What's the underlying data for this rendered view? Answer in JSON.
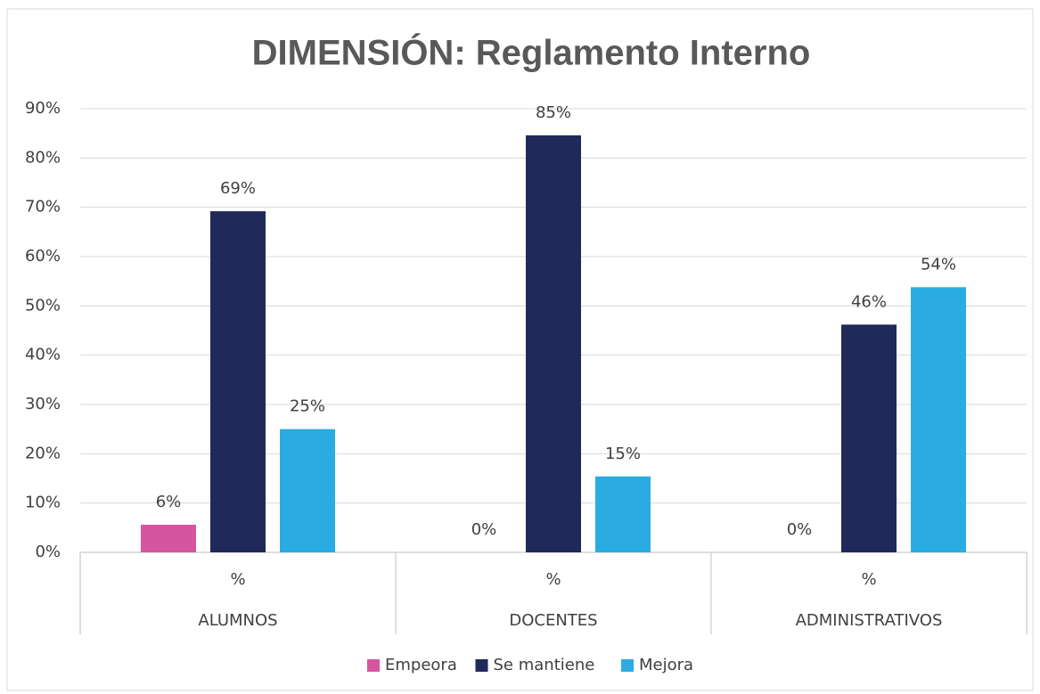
{
  "chart_data": {
    "type": "bar",
    "title": "DIMENSIÓN: Reglamento Interno",
    "categories": [
      "ALUMNOS",
      "DOCENTES",
      "ADMINISTRATIVOS"
    ],
    "subcategories": [
      "%",
      "%",
      "%"
    ],
    "series": [
      {
        "name": "Empeora",
        "color": "#d6559f",
        "values": [
          5.6,
          0,
          0
        ],
        "value_labels": [
          "6%",
          "0%",
          "0%"
        ]
      },
      {
        "name": "Se mantiene",
        "color": "#1f2a5a",
        "values": [
          69.2,
          84.6,
          46.2
        ],
        "value_labels": [
          "69%",
          "85%",
          "46%"
        ]
      },
      {
        "name": "Mejora",
        "color": "#2aace2",
        "values": [
          25,
          15.4,
          53.8
        ],
        "value_labels": [
          "25%",
          "15%",
          "54%"
        ]
      }
    ],
    "ylim": [
      0,
      90
    ],
    "yticks": [
      {
        "value": 0,
        "label": "0%"
      },
      {
        "value": 10,
        "label": "10%"
      },
      {
        "value": 20,
        "label": "20%"
      },
      {
        "value": 30,
        "label": "30%"
      },
      {
        "value": 40,
        "label": "40%"
      },
      {
        "value": 50,
        "label": "50%"
      },
      {
        "value": 60,
        "label": "60%"
      },
      {
        "value": 70,
        "label": "70%"
      },
      {
        "value": 80,
        "label": "80%"
      },
      {
        "value": 90,
        "label": "90%"
      }
    ],
    "grid": true,
    "legend": "bottom"
  }
}
